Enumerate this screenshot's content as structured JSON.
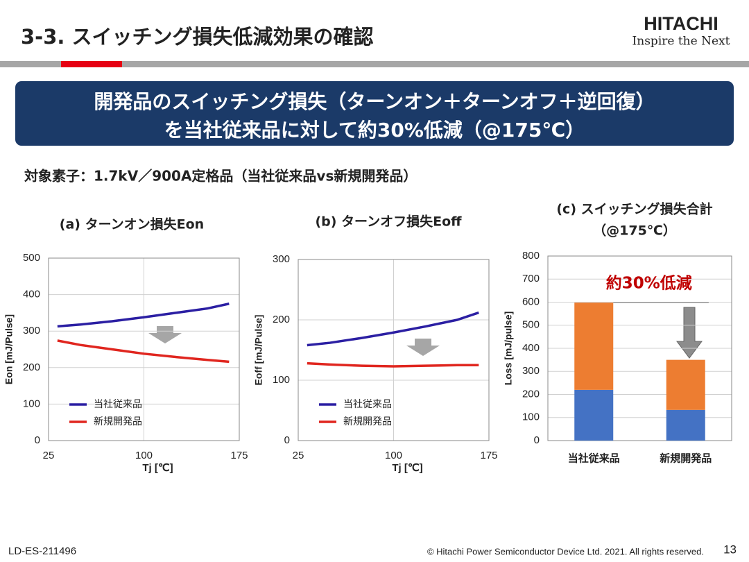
{
  "header": {
    "title": "3-3. スイッチング損失低減効果の確認",
    "logo": "HITACHI",
    "tagline": "Inspire the Next"
  },
  "banner": {
    "lines": [
      "開発品のスイッチング損失（ターンオン＋ターンオフ＋逆回復）",
      "を当社従来品に対して約30%低減（@175℃）"
    ]
  },
  "subtitle": "対象素子：1.7kV／900A定格品（当社従来品vs新規開発品）",
  "footer": {
    "doc_id": "LD-ES-211496",
    "copyright": "© Hitachi Power Semiconductor Device Ltd. 2021. All rights reserved.",
    "page": "13"
  },
  "chart_data": [
    {
      "type": "line",
      "title": "(a) ターンオン損失Eon",
      "x_label": "Tj [℃]",
      "y_label": "Eon [mJ/Pulse]",
      "x": [
        32,
        50,
        75,
        100,
        125,
        150,
        167
      ],
      "xlim": [
        25,
        175
      ],
      "xticks": [
        25,
        100,
        175
      ],
      "ylim": [
        0,
        500
      ],
      "yticks": [
        0,
        100,
        200,
        300,
        400,
        500
      ],
      "grid": true,
      "legend": "lower-left",
      "series": [
        {
          "name": "当社従来品",
          "color": "#2b1fa3",
          "values": [
            313,
            318,
            327,
            338,
            350,
            362,
            375
          ]
        },
        {
          "name": "新規開発品",
          "color": "#e0261f",
          "values": [
            274,
            262,
            250,
            238,
            229,
            221,
            216
          ]
        }
      ]
    },
    {
      "type": "line",
      "title": "(b) ターンオフ損失Eoff",
      "x_label": "Tj [℃]",
      "y_label": "Eoff [mJ/Pulse]",
      "x": [
        32,
        50,
        75,
        100,
        125,
        150,
        167
      ],
      "xlim": [
        25,
        175
      ],
      "xticks": [
        25,
        100,
        175
      ],
      "ylim": [
        0,
        300
      ],
      "yticks": [
        0,
        100,
        200,
        300
      ],
      "grid": true,
      "legend": "lower-left",
      "series": [
        {
          "name": "当社従来品",
          "color": "#2b1fa3",
          "values": [
            158,
            162,
            170,
            179,
            189,
            200,
            212
          ]
        },
        {
          "name": "新規開発品",
          "color": "#e0261f",
          "values": [
            128,
            126,
            124,
            123,
            124,
            125,
            125
          ]
        }
      ]
    },
    {
      "type": "stacked_bar",
      "title": "(c) スイッチング損失合計",
      "subtitle": "（@175℃）",
      "y_label": "Loss [mJ/pulse]",
      "annotation": "約30%低減",
      "categories": [
        "当社従来品",
        "新規開発品"
      ],
      "ylim": [
        0,
        800
      ],
      "yticks": [
        0,
        100,
        200,
        300,
        400,
        500,
        600,
        700,
        800
      ],
      "grid": true,
      "series": [
        {
          "color": "#4472c4",
          "values": [
            220,
            133
          ]
        },
        {
          "color": "#ed7d31",
          "values": [
            378,
            217
          ]
        }
      ]
    }
  ]
}
